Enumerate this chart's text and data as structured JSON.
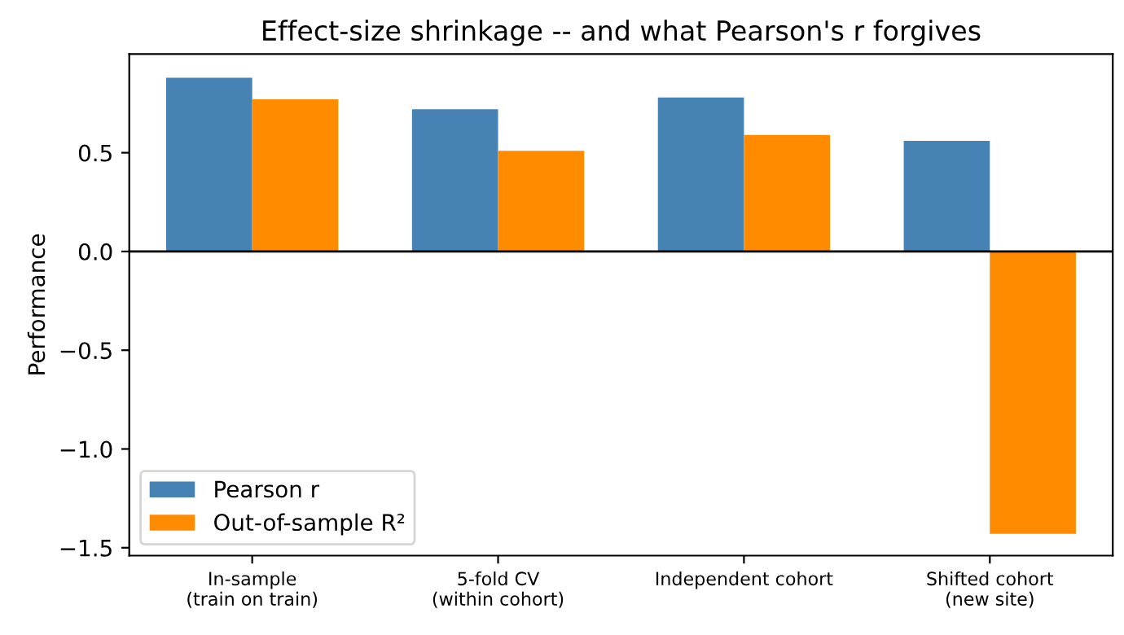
{
  "chart_data": {
    "type": "bar",
    "title": "Effect-size shrinkage -- and what Pearson's r forgives",
    "ylabel": "Performance",
    "categories": [
      "In-sample\n(train on train)",
      "5-fold CV\n(within cohort)",
      "Independent cohort",
      "Shifted cohort\n(new site)"
    ],
    "series": [
      {
        "name": "Pearson r",
        "color": "#4682b4",
        "values": [
          0.88,
          0.72,
          0.78,
          0.56
        ]
      },
      {
        "name": "Out-of-sample R²",
        "color": "#ff8c00",
        "values": [
          0.77,
          0.51,
          0.59,
          -1.43
        ]
      }
    ],
    "ylim": [
      -1.54,
      1.0
    ],
    "yticks": [
      {
        "value": -1.5,
        "label": "−1.5"
      },
      {
        "value": -1.0,
        "label": "−1.0"
      },
      {
        "value": -0.5,
        "label": "−0.5"
      },
      {
        "value": 0.0,
        "label": "0.0"
      },
      {
        "value": 0.5,
        "label": "0.5"
      }
    ],
    "ref_lines": [
      {
        "axis": "y",
        "value": 0,
        "color": "#000000"
      }
    ],
    "legend": "lower left",
    "grid": false
  }
}
